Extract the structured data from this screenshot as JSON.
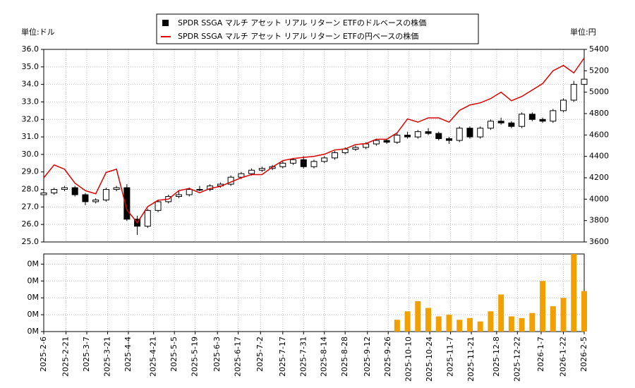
{
  "chart_data": [
    {
      "type": "candlestick",
      "ylabel": "単位:ドル",
      "y2label": "単位:円",
      "x": [
        "2025-02-06",
        "2025-02-13",
        "2025-02-20",
        "2025-02-27",
        "2025-03-06",
        "2025-03-13",
        "2025-03-20",
        "2025-03-27",
        "2025-04-03",
        "2025-04-10",
        "2025-04-17",
        "2025-04-24",
        "2025-05-01",
        "2025-05-08",
        "2025-05-15",
        "2025-05-22",
        "2025-05-29",
        "2025-06-05",
        "2025-06-12",
        "2025-06-19",
        "2025-06-26",
        "2025-07-03",
        "2025-07-10",
        "2025-07-17",
        "2025-07-24",
        "2025-07-31",
        "2025-08-07",
        "2025-08-14",
        "2025-08-21",
        "2025-08-28",
        "2025-09-04",
        "2025-09-11",
        "2025-09-18",
        "2025-09-25",
        "2025-10-02",
        "2025-10-09",
        "2025-10-16",
        "2025-10-23",
        "2025-10-30",
        "2025-11-06",
        "2025-11-13",
        "2025-11-20",
        "2025-11-27",
        "2025-12-04",
        "2025-12-11",
        "2025-12-18",
        "2025-12-25",
        "2026-01-01",
        "2026-01-08",
        "2026-01-15",
        "2026-01-22",
        "2026-01-29",
        "2026-02-05"
      ],
      "series": [
        {
          "name": "SPDR SSGA マルチ アセット リアル リターン ETFのドルベースの株価",
          "color": "#000000",
          "open": [
            27.7,
            27.8,
            28.0,
            28.1,
            27.7,
            27.3,
            27.4,
            28.0,
            28.1,
            26.3,
            25.9,
            26.8,
            27.3,
            27.6,
            27.7,
            28.0,
            28.0,
            28.2,
            28.3,
            28.7,
            28.9,
            29.1,
            29.2,
            29.3,
            29.5,
            29.7,
            29.3,
            29.6,
            29.8,
            30.1,
            30.3,
            30.4,
            30.6,
            30.8,
            30.7,
            31.1,
            31.0,
            31.3,
            31.2,
            30.9,
            30.8,
            31.5,
            31.0,
            31.5,
            31.9,
            31.8,
            31.6,
            32.3,
            32.0,
            31.9,
            32.5,
            33.1,
            34.0
          ],
          "high": [
            27.9,
            28.1,
            28.2,
            28.2,
            27.8,
            27.5,
            28.1,
            28.2,
            28.3,
            26.5,
            26.9,
            27.4,
            27.7,
            27.9,
            28.1,
            28.2,
            28.3,
            28.4,
            28.8,
            29.0,
            29.2,
            29.3,
            29.4,
            29.6,
            29.8,
            29.9,
            29.7,
            29.9,
            30.2,
            30.4,
            30.5,
            30.7,
            30.9,
            30.9,
            31.2,
            31.3,
            31.4,
            31.5,
            31.3,
            31.0,
            31.6,
            31.6,
            31.6,
            32.0,
            32.1,
            31.9,
            32.4,
            32.4,
            32.1,
            32.6,
            33.2,
            34.2,
            34.5
          ],
          "low": [
            27.6,
            27.7,
            27.9,
            27.6,
            27.1,
            27.2,
            27.3,
            27.9,
            26.2,
            25.4,
            25.8,
            26.7,
            27.2,
            27.5,
            27.6,
            27.9,
            27.9,
            28.1,
            28.2,
            28.6,
            28.8,
            29.0,
            29.1,
            29.2,
            29.4,
            29.2,
            29.2,
            29.5,
            29.7,
            30.0,
            30.2,
            30.3,
            30.5,
            30.6,
            30.6,
            30.9,
            30.9,
            31.1,
            30.8,
            30.6,
            30.7,
            30.9,
            30.9,
            31.4,
            31.7,
            31.5,
            31.5,
            31.9,
            31.8,
            31.8,
            32.4,
            33.0,
            33.4
          ],
          "close": [
            27.8,
            28.0,
            28.1,
            27.7,
            27.3,
            27.4,
            28.0,
            28.1,
            26.3,
            25.9,
            26.8,
            27.3,
            27.6,
            27.7,
            28.0,
            28.0,
            28.2,
            28.3,
            28.7,
            28.9,
            29.1,
            29.2,
            29.3,
            29.5,
            29.7,
            29.3,
            29.6,
            29.8,
            30.1,
            30.3,
            30.4,
            30.6,
            30.8,
            30.7,
            31.1,
            31.0,
            31.3,
            31.2,
            30.9,
            30.8,
            31.5,
            31.0,
            31.5,
            31.9,
            31.8,
            31.6,
            32.3,
            32.0,
            31.9,
            32.5,
            33.1,
            34.0,
            34.3
          ]
        },
        {
          "name": "SPDR SSGA マルチ アセット リアル リターン ETFの円ベースの株価",
          "color": "#dd0000",
          "axis": "y2",
          "values": [
            4200,
            4320,
            4280,
            4150,
            4080,
            4050,
            4250,
            4280,
            3900,
            3780,
            3930,
            3990,
            4000,
            4080,
            4100,
            4060,
            4100,
            4120,
            4160,
            4200,
            4230,
            4230,
            4300,
            4360,
            4380,
            4390,
            4400,
            4420,
            4460,
            4470,
            4510,
            4520,
            4560,
            4560,
            4620,
            4750,
            4720,
            4760,
            4760,
            4720,
            4830,
            4880,
            4900,
            4940,
            5000,
            4920,
            4960,
            5020,
            5080,
            5200,
            5250,
            5180,
            5320
          ]
        }
      ],
      "xlim": [
        "2025-02-06",
        "2026-02-05"
      ],
      "ylim": [
        25,
        36
      ],
      "yticks": [
        {
          "value": 25,
          "label": "25.0"
        },
        {
          "value": 26,
          "label": "26.0"
        },
        {
          "value": 27,
          "label": "27.0"
        },
        {
          "value": 28,
          "label": "28.0"
        },
        {
          "value": 29,
          "label": "29.0"
        },
        {
          "value": 30,
          "label": "30.0"
        },
        {
          "value": 31,
          "label": "31.0"
        },
        {
          "value": 32,
          "label": "32.0"
        },
        {
          "value": 33,
          "label": "33.0"
        },
        {
          "value": 34,
          "label": "34.0"
        },
        {
          "value": 35,
          "label": "35.0"
        },
        {
          "value": 36,
          "label": "36.0"
        }
      ],
      "y2lim": [
        3600,
        5400
      ],
      "y2ticks": [
        3600,
        3800,
        4000,
        4200,
        4400,
        4600,
        4800,
        5000,
        5200,
        5400
      ],
      "grid": true
    },
    {
      "type": "bar",
      "x": [
        "2025-02-06",
        "2025-02-13",
        "2025-02-20",
        "2025-02-27",
        "2025-03-06",
        "2025-03-13",
        "2025-03-20",
        "2025-03-27",
        "2025-04-03",
        "2025-04-10",
        "2025-04-17",
        "2025-04-24",
        "2025-05-01",
        "2025-05-08",
        "2025-05-15",
        "2025-05-22",
        "2025-05-29",
        "2025-06-05",
        "2025-06-12",
        "2025-06-19",
        "2025-06-26",
        "2025-07-03",
        "2025-07-10",
        "2025-07-17",
        "2025-07-24",
        "2025-07-31",
        "2025-08-07",
        "2025-08-14",
        "2025-08-21",
        "2025-08-28",
        "2025-09-04",
        "2025-09-11",
        "2025-09-18",
        "2025-09-25",
        "2025-10-02",
        "2025-10-09",
        "2025-10-16",
        "2025-10-23",
        "2025-10-30",
        "2025-11-06",
        "2025-11-13",
        "2025-11-20",
        "2025-11-27",
        "2025-12-04",
        "2025-12-11",
        "2025-12-18",
        "2025-12-25",
        "2026-01-01",
        "2026-01-08",
        "2026-01-15",
        "2026-01-22",
        "2026-01-29",
        "2026-02-05"
      ],
      "values": [
        null,
        null,
        null,
        null,
        null,
        null,
        null,
        null,
        null,
        null,
        null,
        null,
        null,
        null,
        null,
        null,
        null,
        null,
        null,
        null,
        null,
        null,
        null,
        null,
        null,
        null,
        null,
        null,
        null,
        null,
        null,
        null,
        null,
        null,
        7000,
        12000,
        18000,
        14000,
        9000,
        10000,
        7000,
        8000,
        6000,
        12000,
        22000,
        9000,
        8000,
        11000,
        30000,
        15000,
        20000,
        46000,
        24000
      ],
      "color": "#f0a000",
      "xlim": [
        "2025-02-06",
        "2026-02-05"
      ],
      "ylim": [
        0,
        46000
      ],
      "yticks": [
        {
          "value": 0,
          "label": "0M"
        },
        {
          "value": 10000,
          "label": "0M"
        },
        {
          "value": 20000,
          "label": "0M"
        },
        {
          "value": 30000,
          "label": "0M"
        },
        {
          "value": 40000,
          "label": "0M"
        }
      ],
      "xticks": [
        {
          "value": "2025-02-06",
          "label": "2025-2-6"
        },
        {
          "value": "2025-02-21",
          "label": "2025-2-21"
        },
        {
          "value": "2025-03-07",
          "label": "2025-3-7"
        },
        {
          "value": "2025-03-21",
          "label": "2025-3-21"
        },
        {
          "value": "2025-04-04",
          "label": "2025-4-4"
        },
        {
          "value": "2025-04-21",
          "label": "2025-4-21"
        },
        {
          "value": "2025-05-05",
          "label": "2025-5-5"
        },
        {
          "value": "2025-05-19",
          "label": "2025-5-19"
        },
        {
          "value": "2025-06-03",
          "label": "2025-6-3"
        },
        {
          "value": "2025-06-17",
          "label": "2025-6-17"
        },
        {
          "value": "2025-07-02",
          "label": "2025-7-2"
        },
        {
          "value": "2025-07-17",
          "label": "2025-7-17"
        },
        {
          "value": "2025-07-31",
          "label": "2025-7-31"
        },
        {
          "value": "2025-08-14",
          "label": "2025-8-14"
        },
        {
          "value": "2025-08-28",
          "label": "2025-8-28"
        },
        {
          "value": "2025-09-12",
          "label": "2025-9-12"
        },
        {
          "value": "2025-09-26",
          "label": "2025-9-26"
        },
        {
          "value": "2025-10-10",
          "label": "2025-10-10"
        },
        {
          "value": "2025-10-24",
          "label": "2025-10-24"
        },
        {
          "value": "2025-11-07",
          "label": "2025-11-7"
        },
        {
          "value": "2025-11-21",
          "label": "2025-11-21"
        },
        {
          "value": "2025-12-08",
          "label": "2025-12-8"
        },
        {
          "value": "2025-12-22",
          "label": "2025-12-22"
        },
        {
          "value": "2026-01-07",
          "label": "2026-1-7"
        },
        {
          "value": "2026-01-22",
          "label": "2026-1-22"
        },
        {
          "value": "2026-02-05",
          "label": "2026-2-5"
        }
      ],
      "grid": true
    }
  ]
}
